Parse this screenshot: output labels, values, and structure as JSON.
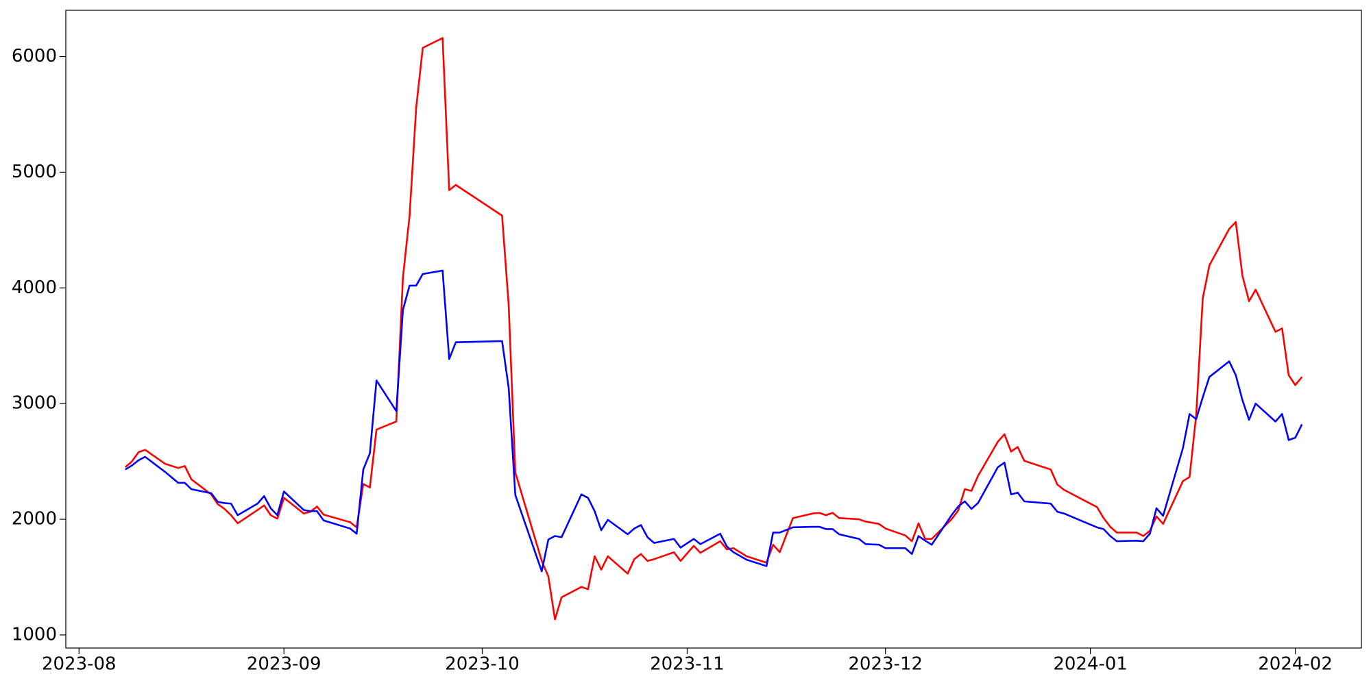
{
  "chart_data": {
    "type": "line",
    "x": [
      "2023-08-08",
      "2023-08-09",
      "2023-08-10",
      "2023-08-11",
      "2023-08-14",
      "2023-08-16",
      "2023-08-17",
      "2023-08-18",
      "2023-08-21",
      "2023-08-22",
      "2023-08-23",
      "2023-08-24",
      "2023-08-25",
      "2023-08-28",
      "2023-08-29",
      "2023-08-30",
      "2023-08-31",
      "2023-09-01",
      "2023-09-04",
      "2023-09-05",
      "2023-09-06",
      "2023-09-07",
      "2023-09-11",
      "2023-09-12",
      "2023-09-13",
      "2023-09-14",
      "2023-09-15",
      "2023-09-18",
      "2023-09-19",
      "2023-09-20",
      "2023-09-21",
      "2023-09-22",
      "2023-09-25",
      "2023-09-26",
      "2023-09-27",
      "2023-10-04",
      "2023-10-05",
      "2023-10-06",
      "2023-10-10",
      "2023-10-11",
      "2023-10-12",
      "2023-10-13",
      "2023-10-16",
      "2023-10-17",
      "2023-10-18",
      "2023-10-19",
      "2023-10-20",
      "2023-10-23",
      "2023-10-24",
      "2023-10-25",
      "2023-10-26",
      "2023-10-27",
      "2023-10-30",
      "2023-10-31",
      "2023-11-02",
      "2023-11-03",
      "2023-11-06",
      "2023-11-07",
      "2023-11-08",
      "2023-11-10",
      "2023-11-13",
      "2023-11-14",
      "2023-11-15",
      "2023-11-17",
      "2023-11-20",
      "2023-11-21",
      "2023-11-22",
      "2023-11-23",
      "2023-11-24",
      "2023-11-27",
      "2023-11-28",
      "2023-11-30",
      "2023-12-01",
      "2023-12-04",
      "2023-12-05",
      "2023-12-06",
      "2023-12-07",
      "2023-12-08",
      "2023-12-11",
      "2023-12-12",
      "2023-12-13",
      "2023-12-14",
      "2023-12-15",
      "2023-12-18",
      "2023-12-19",
      "2023-12-20",
      "2023-12-21",
      "2023-12-22",
      "2023-12-26",
      "2023-12-27",
      "2023-12-28",
      "2024-01-02",
      "2024-01-03",
      "2024-01-04",
      "2024-01-05",
      "2024-01-08",
      "2024-01-09",
      "2024-01-10",
      "2024-01-11",
      "2024-01-12",
      "2024-01-15",
      "2024-01-16",
      "2024-01-17",
      "2024-01-18",
      "2024-01-19",
      "2024-01-22",
      "2024-01-23",
      "2024-01-24",
      "2024-01-25",
      "2024-01-26",
      "2024-01-29",
      "2024-01-30",
      "2024-01-31",
      "2024-02-01",
      "2024-02-02"
    ],
    "series": [
      {
        "color": "#ff0000",
        "values": [
          2450,
          2500,
          2580,
          2600,
          2480,
          2443,
          2460,
          2345,
          2215,
          2130,
          2090,
          2035,
          1965,
          2080,
          2120,
          2035,
          2005,
          2185,
          2050,
          2065,
          2110,
          2040,
          1975,
          1930,
          2305,
          2275,
          2775,
          2845,
          4090,
          4620,
          5555,
          6075,
          6160,
          4845,
          4890,
          4625,
          3850,
          2405,
          1640,
          1505,
          1135,
          1325,
          1415,
          1395,
          1680,
          1565,
          1680,
          1530,
          1655,
          1700,
          1640,
          1655,
          1715,
          1640,
          1770,
          1710,
          1810,
          1740,
          1750,
          1680,
          1625,
          1780,
          1715,
          2010,
          2050,
          2055,
          2035,
          2055,
          2010,
          2000,
          1980,
          1960,
          1920,
          1860,
          1810,
          1965,
          1830,
          1830,
          2000,
          2075,
          2260,
          2245,
          2375,
          2670,
          2735,
          2585,
          2625,
          2505,
          2430,
          2300,
          2255,
          2105,
          2010,
          1935,
          1885,
          1885,
          1855,
          1900,
          2025,
          1960,
          2330,
          2365,
          2895,
          3910,
          4195,
          4510,
          4570,
          4105,
          3885,
          3985,
          3620,
          3650,
          3245,
          3160,
          3230
        ]
      },
      {
        "color": "#0000ff",
        "values": [
          2430,
          2465,
          2510,
          2540,
          2410,
          2315,
          2315,
          2260,
          2225,
          2150,
          2140,
          2135,
          2035,
          2135,
          2200,
          2095,
          2035,
          2240,
          2080,
          2070,
          2070,
          1990,
          1920,
          1875,
          2430,
          2570,
          3200,
          2935,
          3810,
          4020,
          4020,
          4120,
          4150,
          3385,
          3530,
          3540,
          3135,
          2210,
          1550,
          1825,
          1855,
          1845,
          2215,
          2185,
          2070,
          1905,
          1995,
          1870,
          1920,
          1950,
          1845,
          1795,
          1830,
          1755,
          1830,
          1785,
          1875,
          1765,
          1715,
          1650,
          1595,
          1885,
          1885,
          1930,
          1935,
          1935,
          1915,
          1915,
          1870,
          1830,
          1785,
          1780,
          1750,
          1750,
          1700,
          1855,
          1815,
          1780,
          2035,
          2110,
          2155,
          2090,
          2140,
          2450,
          2490,
          2215,
          2230,
          2155,
          2135,
          2065,
          2050,
          1930,
          1915,
          1855,
          1810,
          1815,
          1810,
          1875,
          2095,
          2030,
          2615,
          2910,
          2865,
          3055,
          3230,
          3365,
          3245,
          3030,
          2860,
          3000,
          2845,
          2910,
          2685,
          2705,
          2820
        ]
      }
    ],
    "xlim": [
      "2023-07-30",
      "2024-02-11"
    ],
    "xticks": [
      {
        "value": "2023-08-01",
        "label": "2023-08"
      },
      {
        "value": "2023-09-01",
        "label": "2023-09"
      },
      {
        "value": "2023-10-01",
        "label": "2023-10"
      },
      {
        "value": "2023-11-01",
        "label": "2023-11"
      },
      {
        "value": "2023-12-01",
        "label": "2023-12"
      },
      {
        "value": "2024-01-01",
        "label": "2024-01"
      },
      {
        "value": "2024-02-01",
        "label": "2024-02"
      }
    ],
    "ylim": [
      887,
      6400
    ],
    "yticks": [
      1000,
      2000,
      3000,
      4000,
      5000,
      6000
    ],
    "grid": false
  }
}
